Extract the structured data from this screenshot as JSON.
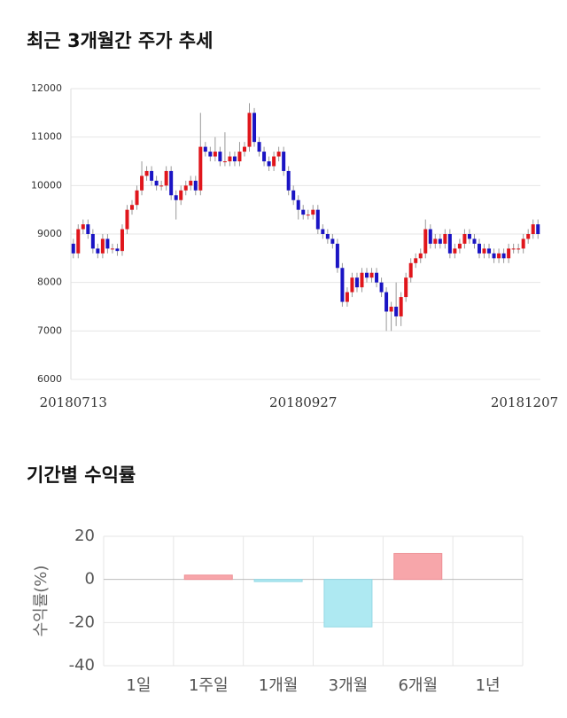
{
  "chart_data": [
    {
      "type": "candlestick",
      "title": "최근 3개월간 주가 추세",
      "categories": [
        "20180713",
        null,
        null,
        null,
        null,
        null,
        null,
        null,
        null,
        null,
        null,
        null,
        null,
        null,
        null,
        null,
        null,
        null,
        null,
        null,
        null,
        null,
        null,
        null,
        null,
        null,
        null,
        null,
        null,
        null,
        null,
        null,
        null,
        null,
        null,
        null,
        null,
        null,
        null,
        null,
        null,
        null,
        null,
        null,
        null,
        null,
        null,
        "20180927",
        null,
        null,
        null,
        null,
        null,
        null,
        null,
        null,
        null,
        null,
        null,
        null,
        null,
        null,
        null,
        null,
        null,
        null,
        null,
        null,
        null,
        null,
        null,
        null,
        null,
        null,
        null,
        null,
        null,
        null,
        null,
        null,
        null,
        null,
        null,
        null,
        null,
        null,
        null,
        null,
        null,
        null,
        null,
        null,
        null,
        null,
        null,
        "20181207"
      ],
      "open": [
        8800,
        8600,
        9100,
        9200,
        9000,
        8700,
        8600,
        8900,
        8700,
        8700,
        8650,
        9100,
        9500,
        9600,
        9900,
        10200,
        10300,
        10100,
        10000,
        10000,
        10300,
        9800,
        9700,
        9900,
        10000,
        10100,
        9900,
        10800,
        10700,
        10600,
        10700,
        10500,
        10500,
        10600,
        10500,
        10700,
        10800,
        11500,
        10900,
        10700,
        10500,
        10400,
        10600,
        10700,
        10300,
        9900,
        9700,
        9500,
        9400,
        9400,
        9500,
        9100,
        9000,
        8900,
        8800,
        8300,
        7600,
        7800,
        8100,
        7900,
        8200,
        8100,
        8200,
        8000,
        7800,
        7400,
        7500,
        7300,
        7700,
        8100,
        8400,
        8500,
        8600,
        9100,
        8800,
        8900,
        8800,
        9000,
        8600,
        8700,
        8800,
        9000,
        8900,
        8800,
        8600,
        8700,
        8600,
        8500,
        8600,
        8500,
        8700,
        8700,
        8700,
        8900,
        9000,
        9200
      ],
      "high": [
        8900,
        9200,
        9300,
        9300,
        9100,
        8800,
        9000,
        9000,
        8800,
        8800,
        9200,
        9600,
        9700,
        10000,
        10500,
        10400,
        10400,
        10200,
        10100,
        10400,
        10400,
        9900,
        10000,
        10100,
        10200,
        10200,
        11500,
        10900,
        10800,
        11000,
        10800,
        11100,
        10700,
        10700,
        10900,
        10900,
        11700,
        11600,
        11000,
        10800,
        10600,
        10700,
        10800,
        10800,
        10400,
        10000,
        9800,
        9600,
        9500,
        9600,
        9600,
        9200,
        9100,
        9000,
        8900,
        8400,
        7900,
        8200,
        8200,
        8300,
        8300,
        8300,
        8300,
        8100,
        7900,
        7600,
        8000,
        7800,
        8200,
        8500,
        8600,
        8700,
        9300,
        9200,
        9000,
        9000,
        9100,
        9100,
        8800,
        8900,
        9100,
        9100,
        9000,
        8900,
        8800,
        8800,
        8700,
        8700,
        8700,
        8800,
        8800,
        8800,
        9000,
        9100,
        9300,
        9300
      ],
      "low": [
        8500,
        8500,
        9000,
        8900,
        8600,
        8500,
        8500,
        8600,
        8600,
        8550,
        8550,
        9000,
        9400,
        9500,
        9800,
        10100,
        10000,
        9900,
        9900,
        9900,
        9700,
        9300,
        9600,
        9800,
        9900,
        9800,
        9800,
        10600,
        10500,
        10500,
        10400,
        10400,
        10400,
        10400,
        10400,
        10600,
        10700,
        10800,
        10600,
        10400,
        10300,
        10300,
        10500,
        10200,
        9800,
        9600,
        9300,
        9300,
        9300,
        9300,
        9000,
        8900,
        8800,
        8700,
        8200,
        7500,
        7500,
        7700,
        7800,
        7800,
        8000,
        8000,
        7900,
        7700,
        7000,
        7000,
        7100,
        7100,
        7600,
        8000,
        8300,
        8400,
        8500,
        8700,
        8700,
        8700,
        8700,
        8500,
        8500,
        8600,
        8700,
        8800,
        8700,
        8500,
        8500,
        8500,
        8400,
        8400,
        8400,
        8400,
        8600,
        8600,
        8600,
        8800,
        8900,
        8900
      ],
      "close": [
        8600,
        9100,
        9200,
        9000,
        8700,
        8600,
        8900,
        8700,
        8700,
        8650,
        9100,
        9500,
        9600,
        9900,
        10200,
        10300,
        10100,
        10000,
        10000,
        10300,
        9800,
        9700,
        9900,
        10000,
        10100,
        9900,
        10800,
        10700,
        10600,
        10700,
        10500,
        10500,
        10600,
        10500,
        10700,
        10800,
        11500,
        10900,
        10700,
        10500,
        10400,
        10600,
        10700,
        10300,
        9900,
        9700,
        9500,
        9400,
        9400,
        9500,
        9100,
        9000,
        8900,
        8800,
        8300,
        7600,
        7800,
        8100,
        7900,
        8200,
        8100,
        8200,
        8000,
        7800,
        7400,
        7500,
        7300,
        7700,
        8100,
        8400,
        8500,
        8600,
        9100,
        8800,
        8900,
        8800,
        9000,
        8600,
        8700,
        8800,
        9000,
        8900,
        8800,
        8600,
        8700,
        8600,
        8500,
        8600,
        8500,
        8700,
        8700,
        8700,
        8900,
        9000,
        9200,
        9000
      ],
      "up_color": "#e0161c",
      "down_color": "#1a14c4",
      "ylim": [
        6000,
        12000
      ],
      "yticks": [
        6000,
        7000,
        8000,
        9000,
        10000,
        11000,
        12000
      ],
      "grid": true
    },
    {
      "type": "bar",
      "title": "기간별 수익률",
      "ylabel": "수익률(%)",
      "categories": [
        "1일",
        "1주일",
        "1개월",
        "3개월",
        "6개월",
        "1년"
      ],
      "values": [
        null,
        2,
        -1,
        -22,
        12,
        null
      ],
      "positive_color": "#f7a6aa",
      "negative_color": "#aee9f2",
      "ylim": [
        -40,
        20
      ],
      "yticks": [
        20,
        0,
        -20,
        -40
      ],
      "grid": true
    }
  ]
}
